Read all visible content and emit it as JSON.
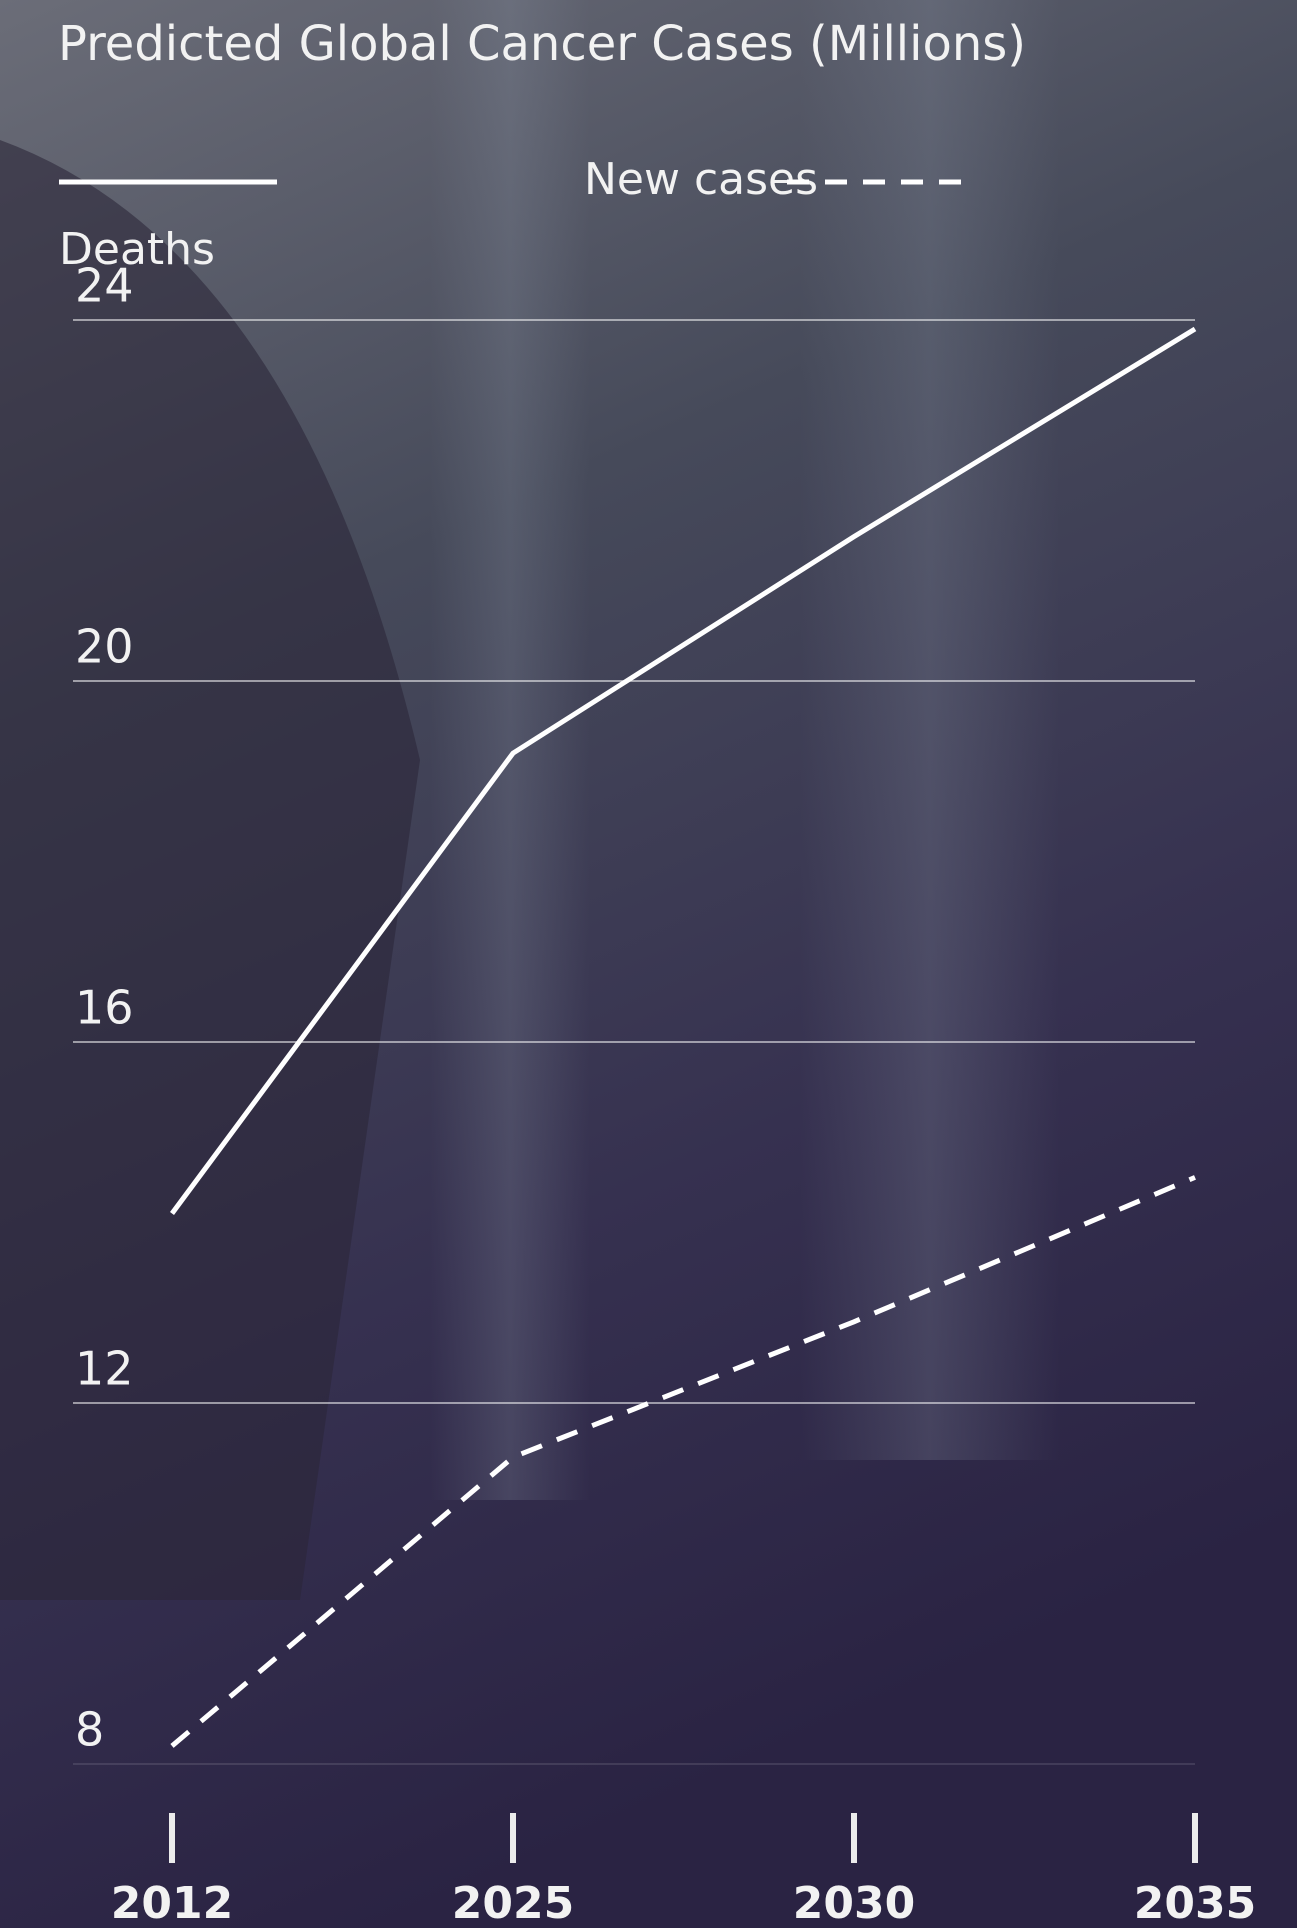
{
  "chart_data": {
    "type": "line",
    "title": "Predicted Global Cancer Cases (Millions)",
    "categories": [
      "2012",
      "2025",
      "2030",
      "2035"
    ],
    "series": [
      {
        "name": "New cases",
        "color": "#ffffff",
        "dash": "solid",
        "values": [
          14.1,
          19.2,
          21.6,
          23.9
        ]
      },
      {
        "name": "Deaths",
        "color": "#ffffff",
        "dash": "dashed",
        "values": [
          8.2,
          11.4,
          12.9,
          14.5
        ]
      }
    ],
    "ylim": [
      8,
      24
    ],
    "yticks": [
      8,
      12,
      16,
      20,
      24
    ],
    "grid": true
  }
}
